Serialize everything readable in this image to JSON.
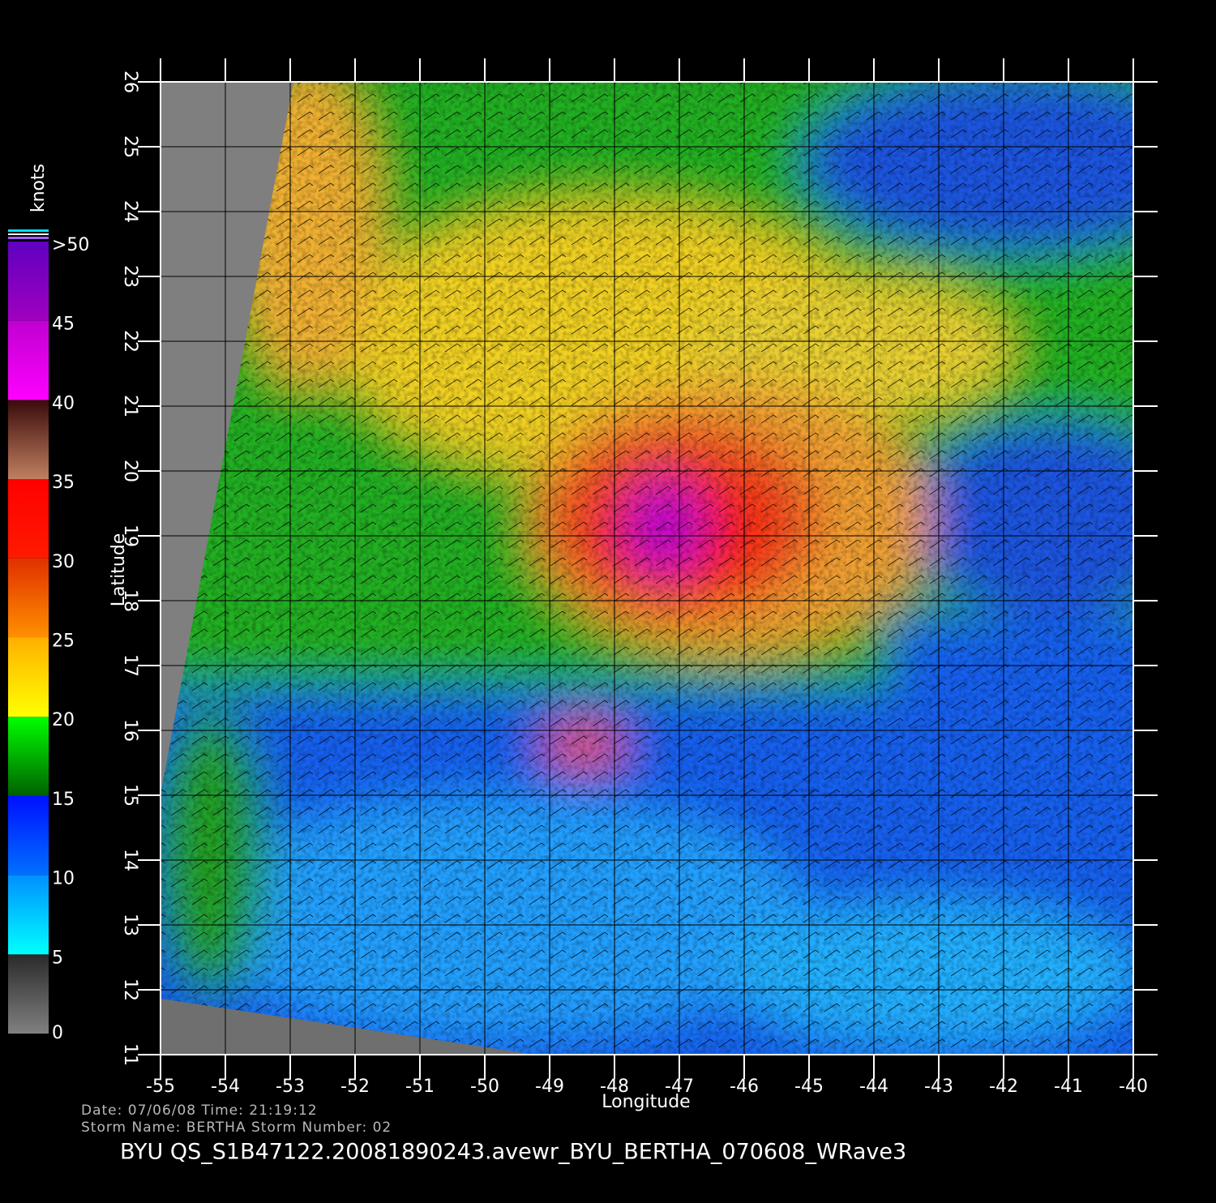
{
  "map": {
    "xlabel": "Longitude",
    "ylabel": "Latitude",
    "xlim": [
      -55,
      -40
    ],
    "ylim": [
      11,
      26
    ],
    "xticks": [
      -55,
      -54,
      -53,
      -52,
      -51,
      -50,
      -49,
      -48,
      -47,
      -46,
      -45,
      -44,
      -43,
      -42,
      -41,
      -40
    ],
    "yticks": [
      11,
      12,
      13,
      14,
      15,
      16,
      17,
      18,
      19,
      20,
      21,
      22,
      23,
      24,
      25,
      26
    ],
    "grid": true
  },
  "colorbar": {
    "unit": "knots",
    "lim": [
      0,
      50
    ],
    "ticks": [
      0,
      5,
      10,
      15,
      20,
      25,
      30,
      35,
      40,
      45,
      {
        "value": 50,
        "label": ">50"
      }
    ],
    "colors": [
      [
        "#808080",
        "#2a2a2a"
      ],
      [
        "#00ffff",
        "#0090ff"
      ],
      [
        "#0070ff",
        "#0010ff"
      ],
      [
        "#006000",
        "#00ff00"
      ],
      [
        "#ffff00",
        "#ffb000"
      ],
      [
        "#ff9000",
        "#e03000"
      ],
      [
        "#ff1a00",
        "#ff0000"
      ],
      [
        "#c08060",
        "#3a0a0a"
      ],
      [
        "#ff00ff",
        "#c000d0"
      ],
      [
        "#a000c0",
        "#6000c0"
      ]
    ]
  },
  "footer": {
    "line1": "Date:  07/06/08    Time:  21:19:12",
    "line2": "Storm  Name:  BERTHA    Storm  Number:  02",
    "title": "BYU  QS_S1B47122.20081890243.avewr_BYU_BERTHA_070608_WRave3"
  }
}
